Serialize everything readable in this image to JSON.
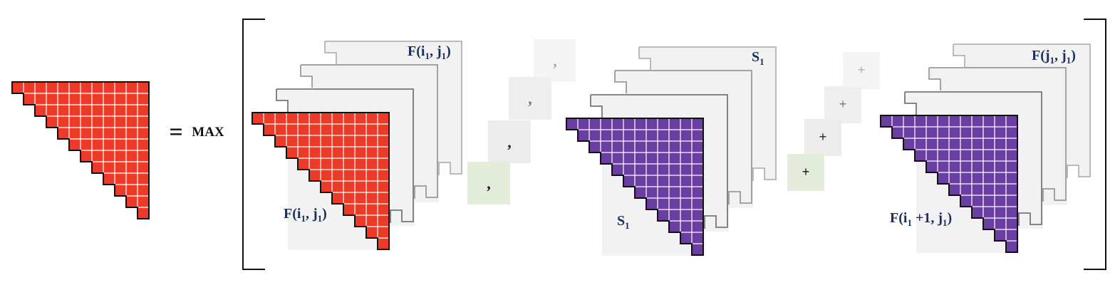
{
  "colors": {
    "red_fill": "#ee3b29",
    "purple_fill": "#6a3ea1",
    "grid_line": "#ffffff",
    "outline": "#111111",
    "layer_fill": "#f2f2f2",
    "layer_stroke_dark": "#777777",
    "layer_stroke_mid": "#999999",
    "layer_stroke_light": "#b3b3b3",
    "label_navy": "#1c2e5c",
    "active_box": "#e4eddb",
    "inactive_box": "#efefef"
  },
  "equation": {
    "equals": "=",
    "operator": "MAX"
  },
  "term1": {
    "front_label": {
      "base": "F(i",
      "sub1": "1",
      "mid": ", j",
      "sub2": "1",
      "end": ")"
    },
    "back_label": {
      "base": "F(i",
      "sub1": "1",
      "mid": ", j",
      "sub2": "1",
      "end": ")"
    }
  },
  "term2": {
    "front_label": {
      "base": "S",
      "sub1": "1"
    },
    "back_label": {
      "base": "S",
      "sub1": "1"
    }
  },
  "term3": {
    "front_label": {
      "base": "F(i",
      "sub1": "1",
      "mid": " +1, j",
      "sub2": "1",
      "end": ")"
    },
    "back_label": {
      "base": "F(j",
      "sub1": "1",
      "mid": ", j",
      "sub2": "1",
      "end": ")"
    }
  },
  "separators": {
    "comma": ",",
    "plus": "+"
  }
}
